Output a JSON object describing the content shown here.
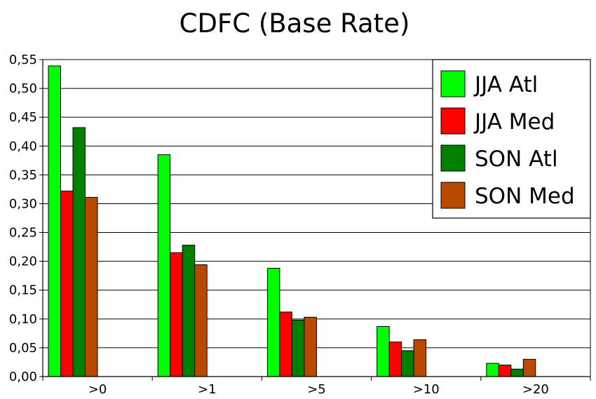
{
  "chart_data": {
    "type": "bar",
    "title": "CDFC  (Base Rate)",
    "xlabel": "",
    "ylabel": "",
    "categories": [
      ">0",
      ">1",
      ">5",
      ">10",
      ">20"
    ],
    "ylim": [
      0,
      0.55
    ],
    "yticks": [
      "0,00",
      "0,05",
      "0,10",
      "0,15",
      "0,20",
      "0,25",
      "0,30",
      "0,35",
      "0,40",
      "0,45",
      "0,50",
      "0,55"
    ],
    "grid": true,
    "legend_position": "top-right",
    "series": [
      {
        "name": "JJA Atl",
        "color": "#00ff00",
        "values": [
          0.539,
          0.385,
          0.188,
          0.087,
          0.023
        ]
      },
      {
        "name": "JJA Med",
        "color": "#ff0000",
        "values": [
          0.322,
          0.215,
          0.112,
          0.06,
          0.02
        ]
      },
      {
        "name": "SON Atl",
        "color": "#007f00",
        "values": [
          0.432,
          0.228,
          0.098,
          0.045,
          0.013
        ]
      },
      {
        "name": "SON Med",
        "color": "#b84a00",
        "values": [
          0.311,
          0.194,
          0.103,
          0.064,
          0.03
        ]
      }
    ]
  }
}
